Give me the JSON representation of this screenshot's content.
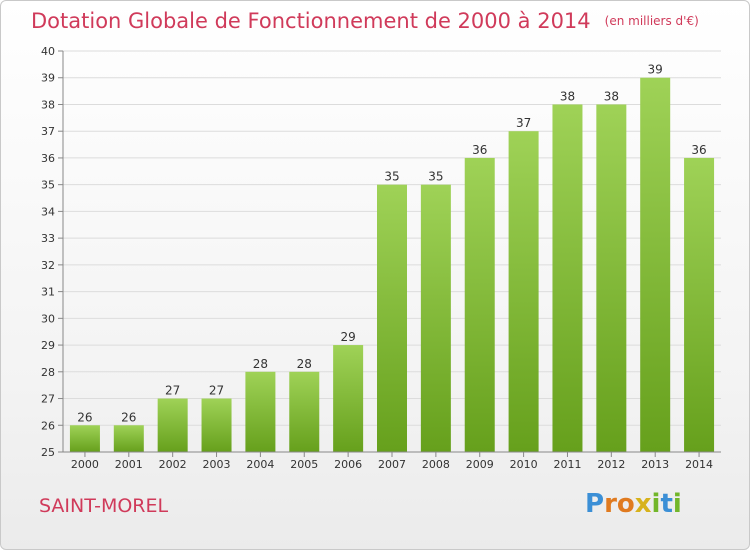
{
  "chart_data": {
    "type": "bar",
    "title": "Dotation Globale de Fonctionnement de 2000 à 2014",
    "subtitle": "(en milliers d'€)",
    "categories": [
      "2000",
      "2001",
      "2002",
      "2003",
      "2004",
      "2005",
      "2006",
      "2007",
      "2008",
      "2009",
      "2010",
      "2011",
      "2012",
      "2013",
      "2014"
    ],
    "values": [
      26,
      26,
      27,
      27,
      28,
      28,
      29,
      35,
      35,
      36,
      37,
      38,
      38,
      39,
      36
    ],
    "xlabel": "",
    "ylabel": "",
    "ylim": [
      25,
      40
    ],
    "yticks": [
      25,
      26,
      27,
      28,
      29,
      30,
      31,
      32,
      33,
      34,
      35,
      36,
      37,
      38,
      39,
      40
    ],
    "grid": true,
    "bar_color": "#8cc63f"
  },
  "commune": "SAINT-MOREL",
  "logo": [
    "P",
    "r",
    "o",
    "x",
    "i",
    "t",
    "i"
  ]
}
